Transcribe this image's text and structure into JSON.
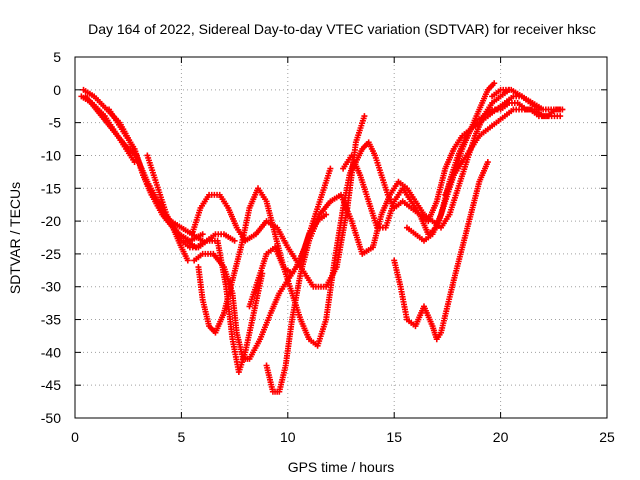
{
  "chart_data": {
    "type": "scatter",
    "title": "Day 164 of 2022, Sidereal Day-to-day VTEC variation (SDTVAR) for receiver hksc",
    "xlabel": "GPS time / hours",
    "ylabel": "SDTVAR / TECUs",
    "xlim": [
      0,
      25
    ],
    "ylim": [
      -50,
      5
    ],
    "xticks": [
      "0",
      "5",
      "10",
      "15",
      "20",
      "25"
    ],
    "yticks": [
      "5",
      "0",
      "-5",
      "-10",
      "-15",
      "-20",
      "-25",
      "-30",
      "-35",
      "-40",
      "-45",
      "-50"
    ],
    "grid": true,
    "marker": "+",
    "color": "#ff0000",
    "series": [
      {
        "x": [
          0.3,
          0.8,
          1.4,
          2.0,
          2.5,
          2.9,
          3.2,
          3.6,
          4.1,
          4.6,
          5.0,
          5.3
        ],
        "y": [
          -1,
          -2,
          -4,
          -7,
          -9,
          -10,
          -13,
          -16,
          -19,
          -21,
          -24,
          -26
        ]
      },
      {
        "x": [
          0.4,
          0.9,
          1.5,
          2.1,
          2.6,
          3.0,
          3.4,
          3.9,
          4.4,
          4.9,
          5.4,
          6.0
        ],
        "y": [
          0,
          -1,
          -3,
          -5,
          -8,
          -11,
          -14,
          -17,
          -20,
          -22,
          -23,
          -22
        ]
      },
      {
        "x": [
          0.5,
          1.0,
          1.5,
          2.0,
          2.4,
          2.8
        ],
        "y": [
          -1,
          -3,
          -5,
          -7,
          -9,
          -11
        ]
      },
      {
        "x": [
          1.6,
          2.0,
          2.4,
          2.8,
          3.2,
          3.6,
          4.0,
          4.5,
          5.0,
          5.5,
          6.0
        ],
        "y": [
          -3,
          -5,
          -7,
          -9,
          -13,
          -16,
          -18,
          -20,
          -21,
          -22,
          -23
        ]
      },
      {
        "x": [
          3.4,
          3.7,
          4.0,
          4.3,
          4.6,
          5.0,
          5.4,
          5.8,
          6.2,
          6.6,
          7.0,
          7.5
        ],
        "y": [
          -10,
          -13,
          -16,
          -19,
          -21,
          -23,
          -24,
          -24,
          -23,
          -22,
          -22,
          -23
        ]
      },
      {
        "x": [
          5.8,
          6.0,
          6.3,
          6.6,
          7.0,
          7.4,
          7.8,
          8.2,
          8.6,
          9.0,
          9.4,
          9.8,
          10.2,
          10.6,
          11.0,
          11.4,
          11.8,
          12.2,
          12.6,
          12.9,
          13.1
        ],
        "y": [
          -27,
          -32,
          -36,
          -37,
          -34,
          -29,
          -24,
          -18,
          -15,
          -17,
          -22,
          -27,
          -31,
          -35,
          -38,
          -39,
          -35,
          -26,
          -18,
          -13,
          -11
        ]
      },
      {
        "x": [
          5.5,
          5.9,
          6.3,
          6.8,
          7.2,
          7.6,
          8.0,
          8.5,
          9.0,
          9.5,
          10.0,
          10.6,
          11.2,
          11.8,
          12.3,
          12.8,
          13.2,
          13.6
        ],
        "y": [
          -22,
          -18,
          -16,
          -16,
          -18,
          -21,
          -23,
          -22,
          -20,
          -21,
          -24,
          -27,
          -30,
          -30,
          -27,
          -18,
          -8,
          -4
        ]
      },
      {
        "x": [
          5.6,
          6.0,
          6.5,
          7.0,
          7.4,
          7.6,
          7.9,
          8.2,
          8.7,
          9.2,
          9.6,
          10.0,
          10.4,
          10.8,
          11.2,
          11.6,
          12.0
        ],
        "y": [
          -26,
          -25,
          -25,
          -27,
          -31,
          -37,
          -41,
          -41,
          -38,
          -34,
          -31,
          -29,
          -27,
          -24,
          -20,
          -16,
          -12
        ]
      },
      {
        "x": [
          5.2,
          5.7,
          6.2,
          6.7,
          7.1,
          7.4,
          7.7,
          8.0,
          8.4,
          8.8
        ],
        "y": [
          -23,
          -24,
          -23,
          -23,
          -30,
          -38,
          -43,
          -40,
          -34,
          -28
        ]
      },
      {
        "x": [
          8.2,
          8.6,
          9.0,
          9.4,
          9.8,
          10.2,
          10.6,
          11.0,
          11.4,
          11.8
        ],
        "y": [
          -33,
          -29,
          -25,
          -24,
          -27,
          -28,
          -26,
          -22,
          -20,
          -19
        ]
      },
      {
        "x": [
          9.0,
          9.3,
          9.6,
          9.9,
          10.2,
          10.6,
          11.0,
          11.5,
          12.0,
          12.5,
          13.0,
          13.5,
          14.0,
          14.4,
          14.8,
          15.2,
          15.6,
          16.0,
          16.4,
          16.8,
          17.2,
          17.6,
          18.0,
          18.4,
          18.8,
          19.2,
          19.6,
          20.0,
          20.4
        ],
        "y": [
          -42,
          -46,
          -46,
          -42,
          -35,
          -28,
          -23,
          -19,
          -17,
          -16,
          -20,
          -25,
          -24,
          -19,
          -16,
          -14,
          -15,
          -17,
          -19,
          -20,
          -21,
          -19,
          -15,
          -11,
          -7,
          -4,
          -2,
          -1,
          0
        ]
      },
      {
        "x": [
          12.6,
          13.0,
          13.4,
          13.8,
          14.2,
          14.6,
          15.0,
          15.4,
          15.8,
          16.2,
          16.6,
          17.0,
          17.4,
          17.8,
          18.2,
          18.6,
          19.0,
          19.4,
          19.7
        ],
        "y": [
          -12,
          -10,
          -13,
          -17,
          -21,
          -21,
          -17,
          -15,
          -17,
          -19,
          -22,
          -21,
          -17,
          -13,
          -9,
          -6,
          -3,
          0,
          1
        ]
      },
      {
        "x": [
          13.2,
          13.5,
          13.8,
          14.1,
          14.4,
          14.7,
          15.0,
          15.4,
          15.8,
          16.2,
          16.6,
          17.0,
          17.4,
          17.8,
          18.2,
          18.6,
          19.0,
          19.4,
          19.8,
          20.2,
          20.6,
          21.0,
          21.4,
          21.8
        ],
        "y": [
          -11,
          -9,
          -8,
          -10,
          -13,
          -16,
          -18,
          -17,
          -18,
          -19,
          -20,
          -17,
          -12,
          -9,
          -7,
          -6,
          -5,
          -4,
          -3,
          -2,
          -1,
          -1,
          -2,
          -3
        ]
      },
      {
        "x": [
          15.6,
          16.0,
          16.4,
          16.8,
          17.2,
          17.6,
          18.0,
          18.4,
          18.8,
          19.2,
          19.6,
          20.0,
          20.4,
          20.8,
          21.2,
          21.6,
          22.0,
          22.4,
          22.8
        ],
        "y": [
          -21,
          -22,
          -23,
          -22,
          -19,
          -14,
          -10,
          -7,
          -5,
          -4,
          -3,
          -3,
          -2,
          -2,
          -3,
          -3,
          -4,
          -4,
          -4
        ]
      },
      {
        "x": [
          15.0,
          15.3,
          15.6,
          16.0,
          16.4,
          16.8,
          17.0,
          17.2,
          17.5,
          17.8,
          18.2,
          18.6,
          19.0,
          19.4
        ],
        "y": [
          -26,
          -30,
          -35,
          -36,
          -33,
          -36,
          -38,
          -37,
          -33,
          -29,
          -24,
          -19,
          -14,
          -11
        ]
      },
      {
        "x": [
          17.4,
          17.8,
          18.2,
          18.6,
          19.0,
          19.4,
          19.8,
          20.2,
          20.6,
          21.0,
          21.4,
          21.8,
          22.2,
          22.6,
          22.9
        ],
        "y": [
          -16,
          -13,
          -11,
          -9,
          -7,
          -6,
          -5,
          -4,
          -3,
          -3,
          -3,
          -4,
          -4,
          -3,
          -3
        ]
      },
      {
        "x": [
          19.6,
          20.0,
          20.5,
          21.0,
          21.5,
          22.0,
          22.5,
          22.9
        ],
        "y": [
          -1,
          0,
          0,
          -1,
          -2,
          -3,
          -3,
          -3
        ]
      }
    ]
  }
}
